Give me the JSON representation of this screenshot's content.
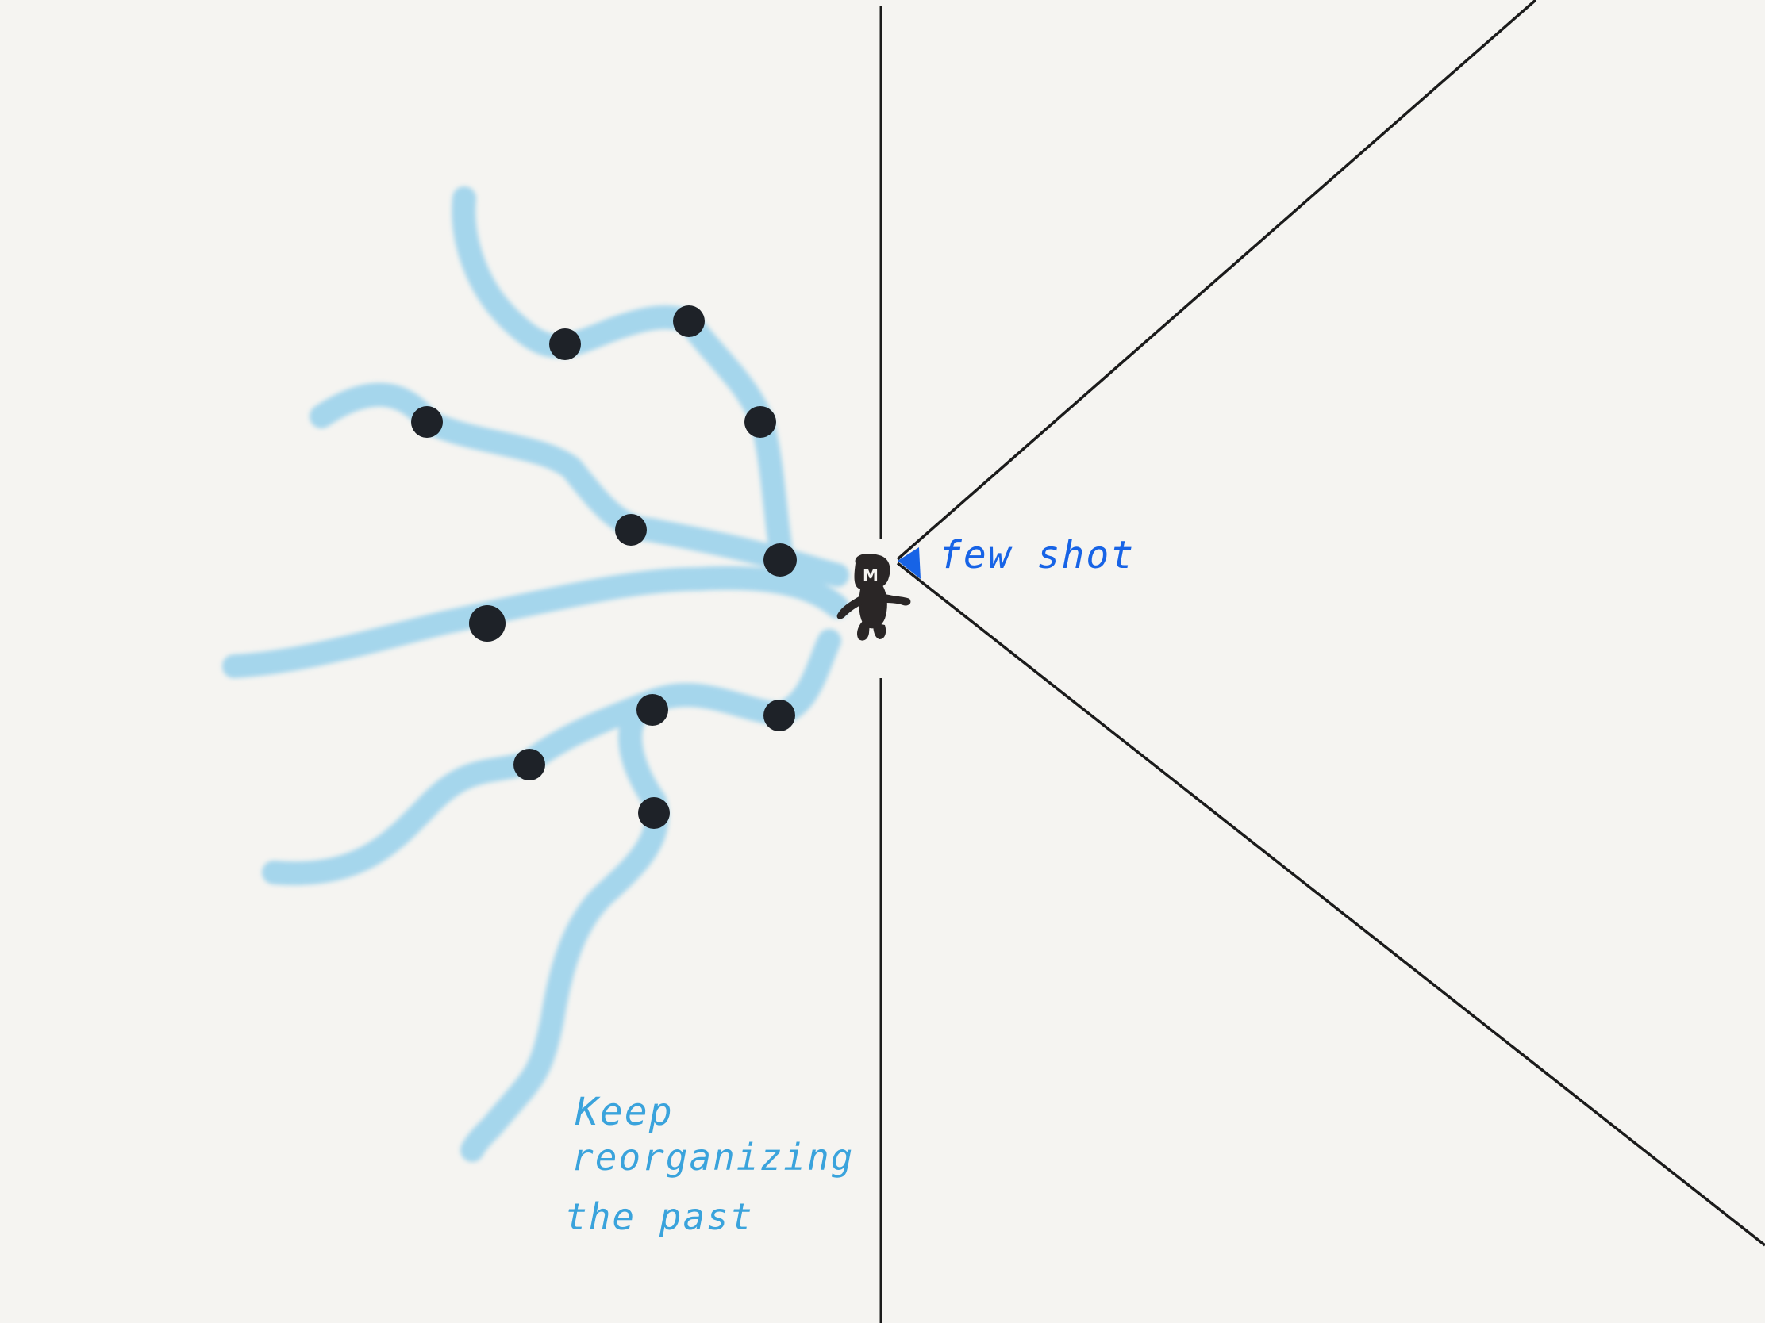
{
  "annotations": {
    "few_shot": "few shot",
    "keep_line1": "Keep",
    "keep_line2": "reorganizing",
    "keep_line3": "the past"
  },
  "figure": {
    "character_letter": "M"
  },
  "colors": {
    "background": "#f5f4f1",
    "stroke": "#1b1b1b",
    "trail": "#9dd3ec",
    "node": "#1e2228",
    "few_shot_text": "#1763e6",
    "keep_text": "#3aa3dc"
  }
}
